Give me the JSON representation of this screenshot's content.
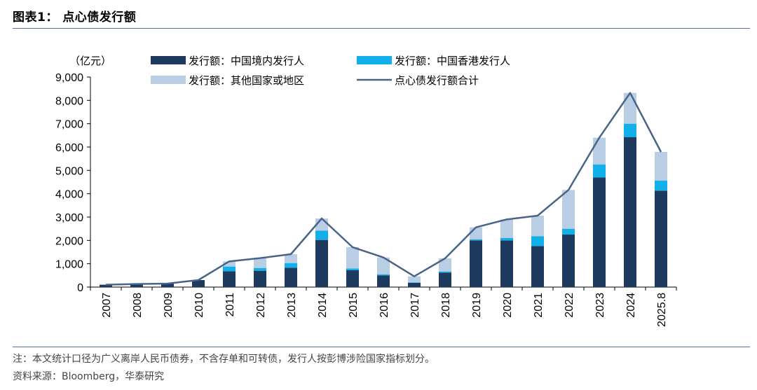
{
  "header": {
    "title": "图表1：  点心债发行额"
  },
  "notes": {
    "note": "注：本文统计口径为广义离岸人民币债券，不含存单和可转债，发行人按彭博涉险国家指标划分。",
    "source": "资料来源：Bloomberg，华泰研究"
  },
  "chart_data": {
    "type": "bar",
    "stacked": true,
    "unit_label": "（亿元）",
    "categories": [
      "2007",
      "2008",
      "2009",
      "2010",
      "2011",
      "2012",
      "2013",
      "2014",
      "2015",
      "2016",
      "2017",
      "2018",
      "2019",
      "2020",
      "2021",
      "2022",
      "2023",
      "2024",
      "2025.8"
    ],
    "series": [
      {
        "name": "发行额：中国境内发行人",
        "color": "#1f3a5f",
        "values": [
          100,
          130,
          150,
          300,
          680,
          700,
          830,
          2020,
          720,
          500,
          180,
          620,
          2000,
          2000,
          1760,
          2250,
          4700,
          6420,
          4130
        ]
      },
      {
        "name": "发行额：中国香港发行人",
        "color": "#12b0ea",
        "values": [
          0,
          0,
          0,
          0,
          200,
          120,
          200,
          400,
          80,
          50,
          20,
          50,
          50,
          100,
          420,
          250,
          550,
          580,
          430
        ]
      },
      {
        "name": "发行额：其他国家或地区",
        "color": "#b9cde4",
        "values": [
          0,
          0,
          0,
          0,
          220,
          420,
          380,
          520,
          910,
          720,
          260,
          560,
          510,
          800,
          880,
          1660,
          1150,
          1320,
          1230
        ]
      }
    ],
    "line": {
      "name": "点心债发行额合计",
      "color": "#4a6487",
      "values": [
        100,
        130,
        150,
        300,
        1100,
        1240,
        1410,
        2940,
        1710,
        1270,
        460,
        1230,
        2560,
        2900,
        3060,
        4160,
        6400,
        8320,
        5790
      ]
    },
    "yticks": [
      "0",
      "1,000",
      "2,000",
      "3,000",
      "4,000",
      "5,000",
      "6,000",
      "7,000",
      "8,000",
      "9,000"
    ],
    "ylim": [
      0,
      9000
    ],
    "legend": "top",
    "grid": false
  }
}
